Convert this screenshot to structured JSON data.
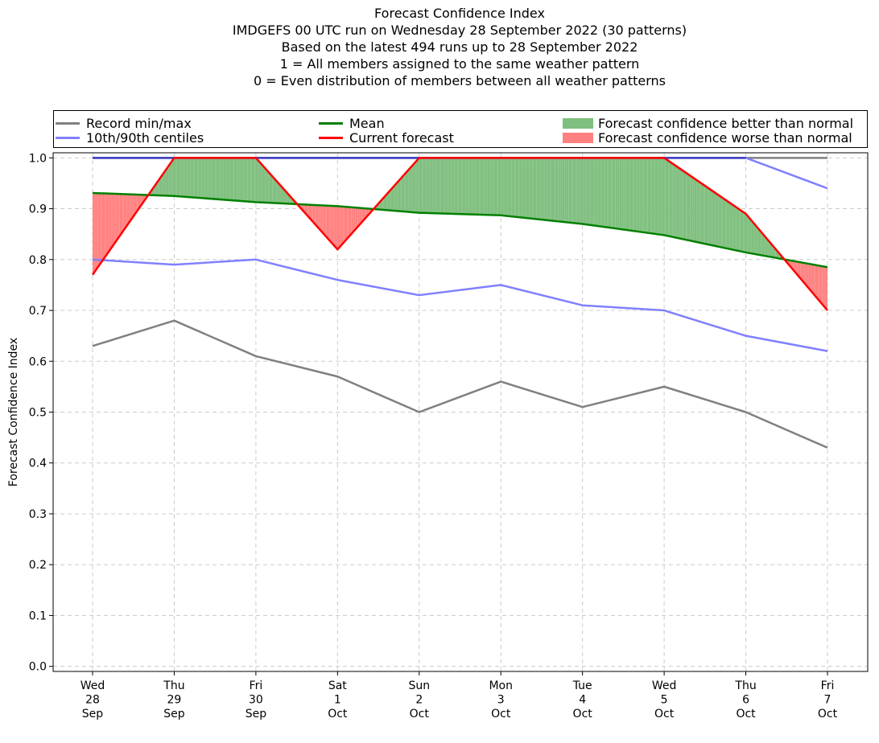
{
  "titles": [
    "Forecast Confidence Index",
    "IMDGEFS 00 UTC run on Wednesday 28 September 2022 (30 patterns)",
    "Based on the latest 494 runs up to 28 September 2022",
    "1 = All members assigned to the same weather pattern",
    "0 = Even distribution of members between all weather patterns"
  ],
  "legend": {
    "record": "Record min/max",
    "centiles": "10th/90th centiles",
    "mean": "Mean",
    "current": "Current forecast",
    "better": "Forecast confidence better than normal",
    "worse": "Forecast confidence worse than normal"
  },
  "colors": {
    "record": "#808080",
    "centiles": "#8080ff",
    "overlap": "#4040c0",
    "mean": "#008000",
    "current": "#ff0000",
    "better": "#7fbf7f",
    "worse": "#ff8080",
    "grid": "#cccccc"
  },
  "chart_data": {
    "type": "line",
    "ylabel": "Forecast Confidence Index",
    "ylim": [
      -0.01,
      1.01
    ],
    "yticks": [
      0.0,
      0.1,
      0.2,
      0.3,
      0.4,
      0.5,
      0.6,
      0.7,
      0.8,
      0.9,
      1.0
    ],
    "ytick_labels": [
      "0.0",
      "0.1",
      "0.2",
      "0.3",
      "0.4",
      "0.5",
      "0.6",
      "0.7",
      "0.8",
      "0.9",
      "1.0"
    ],
    "categories": [
      [
        "Wed",
        "28",
        "Sep"
      ],
      [
        "Thu",
        "29",
        "Sep"
      ],
      [
        "Fri",
        "30",
        "Sep"
      ],
      [
        "Sat",
        "1",
        "Oct"
      ],
      [
        "Sun",
        "2",
        "Oct"
      ],
      [
        "Mon",
        "3",
        "Oct"
      ],
      [
        "Tue",
        "4",
        "Oct"
      ],
      [
        "Wed",
        "5",
        "Oct"
      ],
      [
        "Thu",
        "6",
        "Oct"
      ],
      [
        "Fri",
        "7",
        "Oct"
      ]
    ],
    "grid": true,
    "legend_position": "top",
    "series": [
      {
        "name": "Record min/max",
        "role": "record_max",
        "values": [
          1.0,
          1.0,
          1.0,
          1.0,
          1.0,
          1.0,
          1.0,
          1.0,
          1.0,
          1.0
        ]
      },
      {
        "name": "Record min/max",
        "role": "record_min",
        "values": [
          0.63,
          0.68,
          0.61,
          0.57,
          0.5,
          0.56,
          0.51,
          0.55,
          0.5,
          0.43
        ]
      },
      {
        "name": "10th/90th centiles",
        "role": "centile_90",
        "values": [
          1.0,
          1.0,
          1.0,
          1.0,
          1.0,
          1.0,
          1.0,
          1.0,
          1.0,
          0.94
        ]
      },
      {
        "name": "10th/90th centiles",
        "role": "centile_10",
        "values": [
          0.8,
          0.79,
          0.8,
          0.76,
          0.73,
          0.75,
          0.71,
          0.7,
          0.65,
          0.62
        ]
      },
      {
        "name": "Mean",
        "role": "mean",
        "values": [
          0.931,
          0.925,
          0.913,
          0.905,
          0.892,
          0.887,
          0.87,
          0.848,
          0.814,
          0.785
        ]
      },
      {
        "name": "Current forecast",
        "role": "current",
        "values": [
          0.77,
          1.0,
          1.0,
          0.82,
          1.0,
          1.0,
          1.0,
          1.0,
          0.89,
          0.7
        ]
      }
    ]
  }
}
